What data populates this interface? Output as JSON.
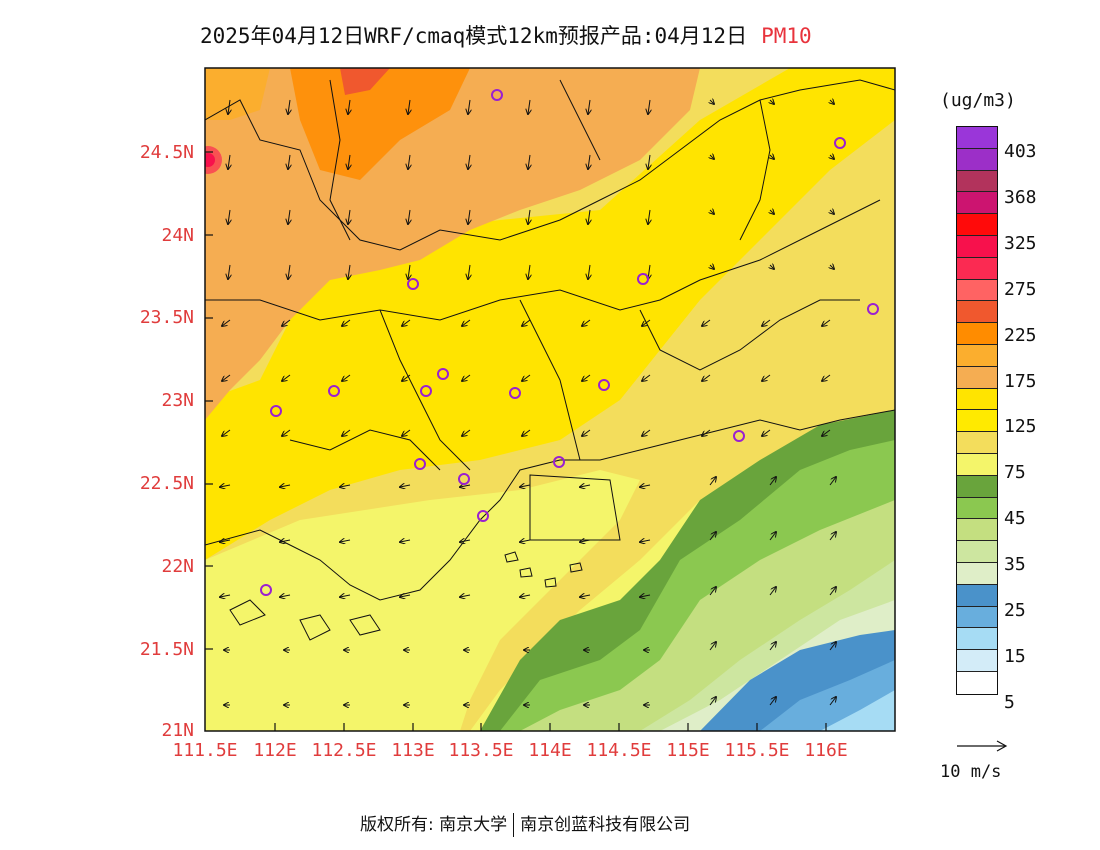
{
  "title": {
    "main": "2025年04月12日WRF/cmaq模式12km预报产品:04月12日",
    "pollutant": "PM10"
  },
  "axes": {
    "lat_labels": [
      "24.5N",
      "24N",
      "23.5N",
      "23N",
      "22.5N",
      "22N",
      "21.5N",
      "21N"
    ],
    "lon_labels": [
      "111.5E",
      "112E",
      "112.5E",
      "113E",
      "113.5E",
      "114E",
      "114.5E",
      "115E",
      "115.5E",
      "116E"
    ]
  },
  "colorbar": {
    "unit": "(ug/m3)",
    "labels": [
      "403",
      "368",
      "325",
      "275",
      "225",
      "175",
      "125",
      "75",
      "45",
      "35",
      "25",
      "15",
      "5"
    ],
    "colors": [
      "#9a36d9",
      "#9c2fc8",
      "#b2335c",
      "#cc1470",
      "#ff0a0a",
      "#f7114c",
      "#fb2a52",
      "#ff6363",
      "#f0582e",
      "#ff8c00",
      "#fbae2e",
      "#f5ad52",
      "#ffe400",
      "#ffea00",
      "#f3dd5c",
      "#f4f56a",
      "#69a43c",
      "#8bc850",
      "#c4df80",
      "#cde6a0",
      "#dfeec8",
      "#4a92ca",
      "#68aedd",
      "#a6dcf4",
      "#d3ecf8",
      "#ffffff"
    ]
  },
  "wind_reference": {
    "label": "10 m/s"
  },
  "footer": {
    "rights": "版权所有: 南京大学",
    "company": "南京创蓝科技有限公司"
  },
  "colors": {
    "axis_label": "#e03c3c",
    "station_marker": "#9a20d0"
  }
}
